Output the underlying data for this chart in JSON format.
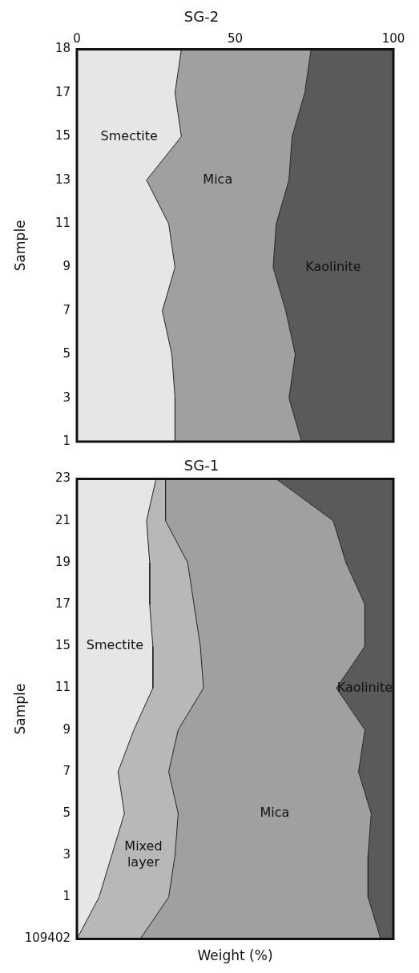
{
  "chart_data": [
    {
      "type": "area",
      "title": "SG-2",
      "ylabel": "Sample",
      "orientation": "horizontal",
      "stacked": true,
      "legend": false,
      "xlim": [
        0,
        100
      ],
      "xticks": [
        0,
        50,
        100
      ],
      "categories": [
        "18",
        "17",
        "15",
        "13",
        "11",
        "9",
        "7",
        "5",
        "3",
        "1"
      ],
      "series": [
        {
          "name": "Smectite",
          "color": "#e6e6e6",
          "values": [
            33,
            31,
            33,
            22,
            29,
            31,
            27,
            30,
            31,
            31
          ]
        },
        {
          "name": "Mica",
          "color": "#a0a0a0",
          "values": [
            41,
            41,
            35,
            45,
            34,
            31,
            39,
            39,
            36,
            40
          ]
        },
        {
          "name": "Kaolinite",
          "color": "#5a5a5a",
          "values": [
            26,
            28,
            32,
            33,
            37,
            38,
            34,
            31,
            33,
            29
          ]
        }
      ]
    },
    {
      "type": "area",
      "title": "SG-1",
      "ylabel": "Sample",
      "xlabel": "Weight (%)",
      "orientation": "horizontal",
      "stacked": true,
      "legend": false,
      "xlim": [
        0,
        100
      ],
      "tick_labels": "y",
      "categories": [
        "23",
        "21",
        "19",
        "17",
        "15",
        "11",
        "9",
        "7",
        "5",
        "3",
        "1",
        "109402"
      ],
      "series": [
        {
          "name": "Smectite",
          "color": "#e6e6e6",
          "values": [
            25,
            22,
            23,
            23,
            24,
            24,
            18,
            13,
            15,
            11,
            7,
            0
          ]
        },
        {
          "name": "Mixed layer",
          "color": "#b8b8b8",
          "values": [
            3,
            6,
            12,
            14,
            15,
            16,
            14,
            16,
            17,
            20,
            22,
            20
          ]
        },
        {
          "name": "Mica",
          "color": "#a0a0a0",
          "values": [
            35,
            53,
            50,
            54,
            52,
            42,
            59,
            60,
            61,
            61,
            63,
            76
          ]
        },
        {
          "name": "Kaolinite",
          "color": "#5a5a5a",
          "values": [
            37,
            19,
            15,
            9,
            9,
            18,
            9,
            11,
            7,
            8,
            8,
            4
          ]
        }
      ]
    }
  ]
}
